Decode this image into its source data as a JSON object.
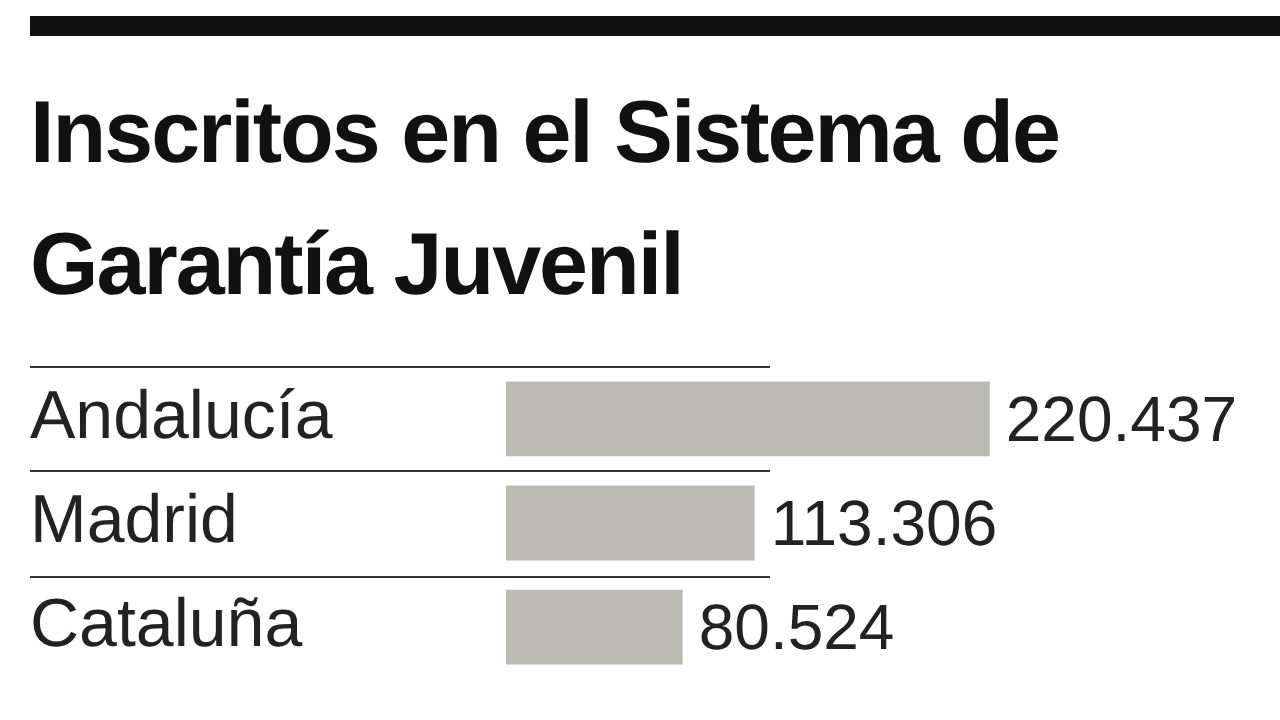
{
  "chart_data": {
    "type": "bar",
    "orientation": "horizontal",
    "title": "Inscritos en el Sistema de Garantía Juvenil",
    "categories": [
      "Andalucía",
      "Madrid",
      "Cataluña"
    ],
    "values": [
      220437,
      113306,
      80524
    ],
    "value_labels": [
      "220.437",
      "113.306",
      "80.524"
    ],
    "color": "#bcbcb4",
    "grid": false,
    "legend": false
  }
}
